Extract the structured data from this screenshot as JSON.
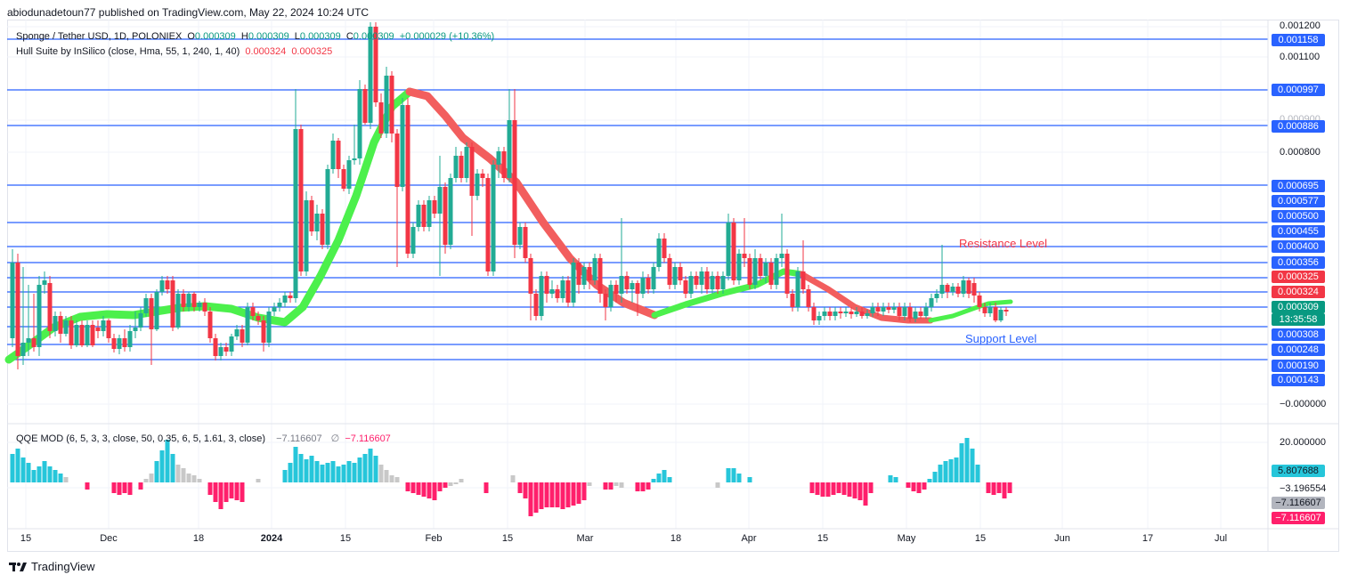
{
  "header": {
    "text": "abiodunadetoun77 published on TradingView.com, May 22, 2024 10:24 UTC"
  },
  "legend": {
    "symbol": "Sponge / Tether USD, 1D, POLONIEX",
    "o_label": "O",
    "o_value": "0.000309",
    "h_label": "H",
    "h_value": "0.000309",
    "l_label": "L",
    "l_value": "0.000309",
    "c_label": "C",
    "c_value": "0.000309",
    "change": "+0.000029 (+10.36%)",
    "indicator": "Hull Suite by InSilico (close, Hma, 55, 1, 240, 1, 40)",
    "ind_val1": "0.000324",
    "ind_val2": "0.000325",
    "qqe": "QQE MOD (6, 5, 3, 3, close, 50, 0.35, 6, 5, 1.61, 3, close)",
    "qqe_val1": "−7.116607",
    "qqe_sym": "∅",
    "qqe_val2": "−7.116607"
  },
  "annotations": {
    "resistance": "Resistance Level",
    "support": "Support Level"
  },
  "price_axis": {
    "plain": [
      {
        "label": "0.001200"
      },
      {
        "label": "0.001100"
      },
      {
        "label": "0.000900"
      },
      {
        "label": "0.000800"
      },
      {
        "label": "−0.000000"
      },
      {
        "label": "20.000000"
      },
      {
        "label": "−3.196554"
      }
    ],
    "tags": [
      {
        "label": "0.001158",
        "color": "#2962ff"
      },
      {
        "label": "0.000997",
        "color": "#2962ff"
      },
      {
        "label": "0.000886",
        "color": "#2962ff"
      },
      {
        "label": "0.000695",
        "color": "#2962ff"
      },
      {
        "label": "0.000577",
        "color": "#2962ff"
      },
      {
        "label": "0.000500",
        "color": "#2962ff"
      },
      {
        "label": "0.000455",
        "color": "#2962ff"
      },
      {
        "label": "0.000400",
        "color": "#2962ff"
      },
      {
        "label": "0.000356",
        "color": "#2962ff"
      },
      {
        "label": "0.000325",
        "color": "#f23645"
      },
      {
        "label": "0.000324",
        "color": "#f23645"
      },
      {
        "label": "0.000309",
        "color": "#089981"
      },
      {
        "label": "13:35:58",
        "color": "#089981"
      },
      {
        "label": "0.000308",
        "color": "#2962ff"
      },
      {
        "label": "0.000248",
        "color": "#2962ff"
      },
      {
        "label": "0.000190",
        "color": "#2962ff"
      },
      {
        "label": "0.000143",
        "color": "#2962ff"
      },
      {
        "label": "5.807688",
        "color": "#26c6da"
      },
      {
        "label": "−7.116607",
        "color": "#b2b5be"
      },
      {
        "label": "−7.116607",
        "color": "#ff1f6b"
      }
    ]
  },
  "time_axis": [
    "15",
    "Dec",
    "18",
    "2024",
    "15",
    "Feb",
    "15",
    "Mar",
    "18",
    "Apr",
    "15",
    "May",
    "15",
    "Jun",
    "17",
    "Jul"
  ],
  "footer": {
    "brand": "TradingView"
  },
  "colors": {
    "bull": "#22ab94",
    "bear": "#f23645",
    "hull_up": "#4cf04c",
    "hull_down": "#f25e5e",
    "level": "#2962ff",
    "qqe_up": "#26c6da",
    "qqe_down": "#ff1f6b",
    "qqe_neutral": "#c8c8c8"
  }
}
